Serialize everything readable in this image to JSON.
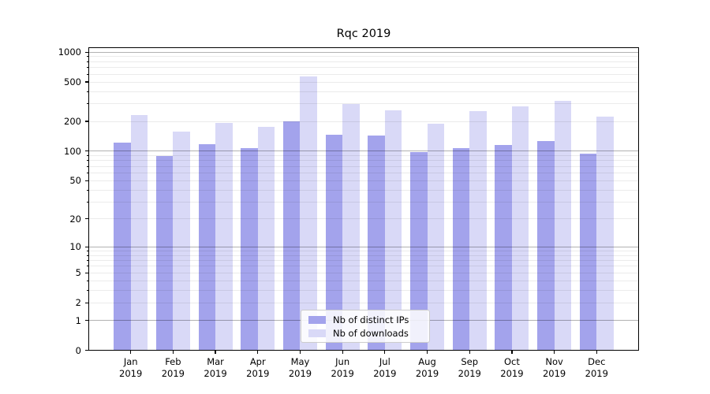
{
  "title": "Rqc 2019",
  "colors": {
    "ips": "#a3a3ec",
    "downloads": "#d9d9f7",
    "major_grid": "rgba(0,0,0,0.30)",
    "minor_grid": "rgba(0,0,0,0.08)",
    "spine": "#000000",
    "background": "#ffffff"
  },
  "legend": {
    "items": [
      {
        "label": "Nb of distinct IPs",
        "color_key": "ips"
      },
      {
        "label": "Nb of downloads",
        "color_key": "downloads"
      }
    ]
  },
  "y_axis": {
    "scale": "log10(value+1)",
    "ticks": [
      {
        "value": 1000,
        "label": "1000",
        "major": true
      },
      {
        "value": 500,
        "label": "500",
        "major": false
      },
      {
        "value": 200,
        "label": "200",
        "major": false
      },
      {
        "value": 100,
        "label": "100",
        "major": true
      },
      {
        "value": 50,
        "label": "50",
        "major": false
      },
      {
        "value": 20,
        "label": "20",
        "major": false
      },
      {
        "value": 10,
        "label": "10",
        "major": true
      },
      {
        "value": 5,
        "label": "5",
        "major": false
      },
      {
        "value": 2,
        "label": "2",
        "major": false
      },
      {
        "value": 1,
        "label": "1",
        "major": true
      },
      {
        "value": 0,
        "label": "0",
        "major": false
      }
    ],
    "minor_grid_values": [
      2,
      3,
      4,
      5,
      6,
      7,
      8,
      9,
      20,
      30,
      40,
      50,
      60,
      70,
      80,
      90,
      200,
      300,
      400,
      500,
      600,
      700,
      800,
      900
    ]
  },
  "x_axis": {
    "tick_line1": [
      "Jan",
      "Feb",
      "Mar",
      "Apr",
      "May",
      "Jun",
      "Jul",
      "Aug",
      "Sep",
      "Oct",
      "Nov",
      "Dec"
    ],
    "tick_line2": "2019"
  },
  "chart_data": {
    "type": "bar",
    "title": "Rqc 2019",
    "categories": [
      "Jan 2019",
      "Feb 2019",
      "Mar 2019",
      "Apr 2019",
      "May 2019",
      "Jun 2019",
      "Jul 2019",
      "Aug 2019",
      "Sep 2019",
      "Oct 2019",
      "Nov 2019",
      "Dec 2019"
    ],
    "series": [
      {
        "name": "Nb of distinct IPs",
        "color": "#a3a3ec",
        "values": [
          121,
          89,
          117,
          107,
          200,
          146,
          143,
          97,
          107,
          115,
          126,
          95
        ]
      },
      {
        "name": "Nb of downloads",
        "color": "#d9d9f7",
        "values": [
          230,
          157,
          192,
          177,
          568,
          299,
          260,
          191,
          253,
          286,
          320,
          224
        ]
      }
    ],
    "yscale": "symlog-like (positions proportional to log10(v+1))",
    "yticks": [
      0,
      1,
      2,
      5,
      10,
      20,
      50,
      100,
      200,
      500,
      1000
    ],
    "ylim": [
      0,
      1130
    ],
    "grid": true,
    "grid_on_top_of_bars": true,
    "legend_position": "lower center"
  }
}
